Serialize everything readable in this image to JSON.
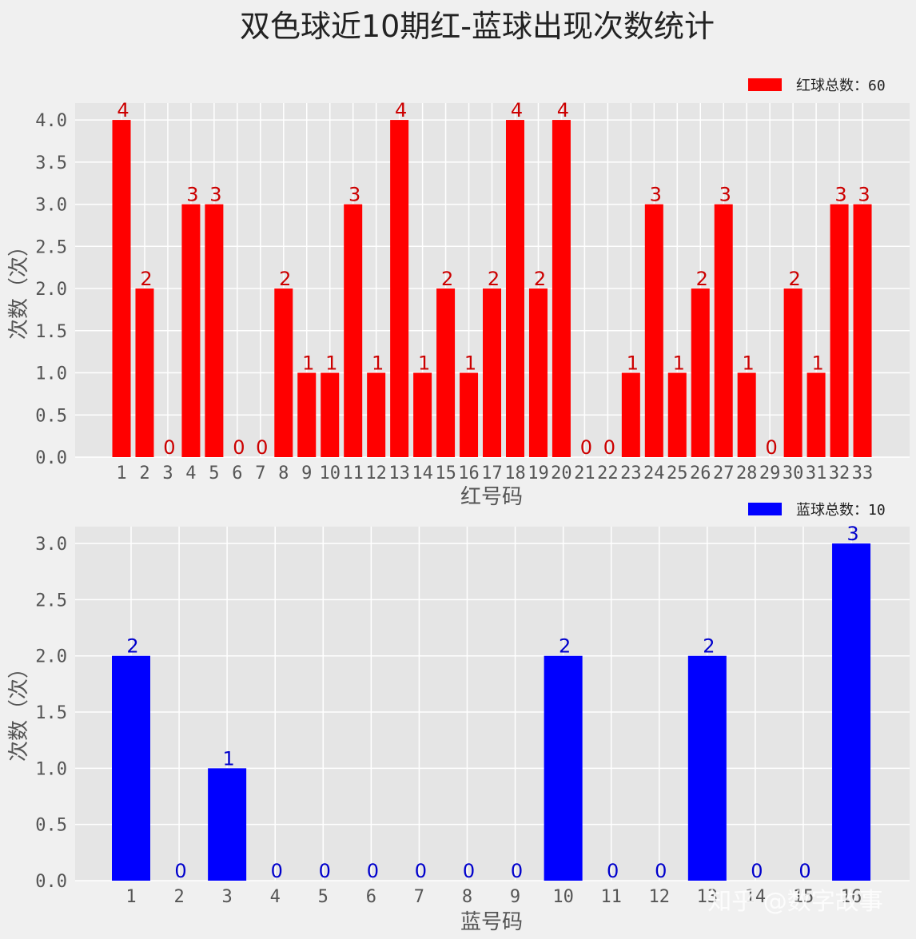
{
  "chart_data": [
    {
      "type": "bar",
      "title": "双色球近10期红-蓝球出现次数统计",
      "xlabel": "红号码",
      "ylabel": "次数（次）",
      "legend": "红球总数：60",
      "legend_position": "top-right",
      "color": "#ff0000",
      "label_color": "#cc0000",
      "ylim": [
        0,
        4.2
      ],
      "yticks": [
        "0.0",
        "0.5",
        "1.0",
        "1.5",
        "2.0",
        "2.5",
        "3.0",
        "3.5",
        "4.0"
      ],
      "categories": [
        "1",
        "2",
        "3",
        "4",
        "5",
        "6",
        "7",
        "8",
        "9",
        "10",
        "11",
        "12",
        "13",
        "14",
        "15",
        "16",
        "17",
        "18",
        "19",
        "20",
        "21",
        "22",
        "23",
        "24",
        "25",
        "26",
        "27",
        "28",
        "29",
        "30",
        "31",
        "32",
        "33"
      ],
      "values": [
        4,
        2,
        0,
        3,
        3,
        0,
        0,
        2,
        1,
        1,
        3,
        1,
        4,
        1,
        2,
        1,
        2,
        4,
        2,
        4,
        0,
        0,
        1,
        3,
        1,
        2,
        3,
        1,
        0,
        2,
        1,
        3,
        3
      ]
    },
    {
      "type": "bar",
      "xlabel": "蓝号码",
      "ylabel": "次数（次）",
      "legend": "蓝球总数：10",
      "legend_position": "top-right",
      "color": "#0000ff",
      "label_color": "#0000cc",
      "ylim": [
        0,
        3.15
      ],
      "yticks": [
        "0.0",
        "0.5",
        "1.0",
        "1.5",
        "2.0",
        "2.5",
        "3.0"
      ],
      "categories": [
        "1",
        "2",
        "3",
        "4",
        "5",
        "6",
        "7",
        "8",
        "9",
        "10",
        "11",
        "12",
        "13",
        "14",
        "15",
        "16"
      ],
      "values": [
        2,
        0,
        1,
        0,
        0,
        0,
        0,
        0,
        0,
        2,
        0,
        0,
        2,
        0,
        0,
        3
      ]
    }
  ],
  "watermark": "知乎 @数字故事"
}
